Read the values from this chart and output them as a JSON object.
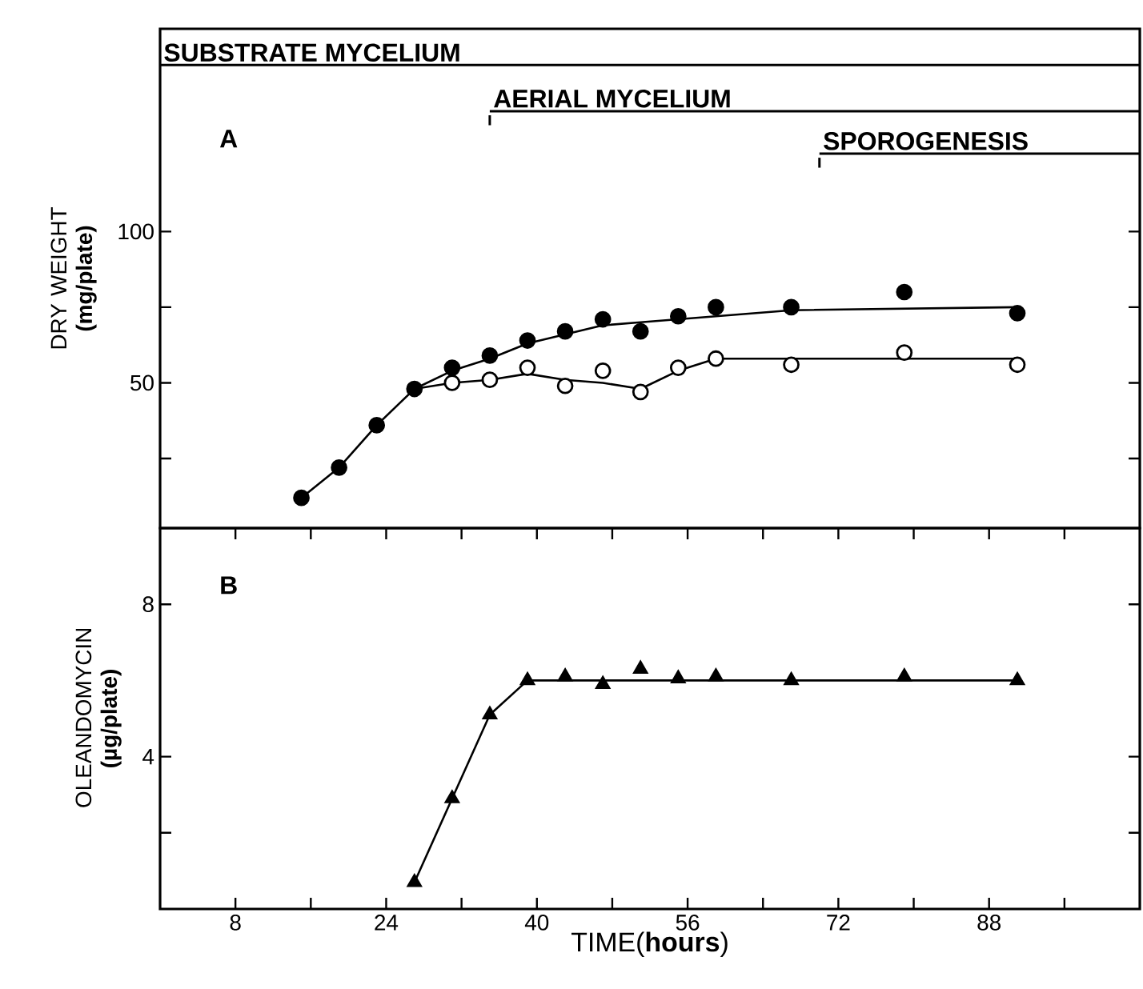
{
  "chart_data": [
    {
      "type": "scatter",
      "ylabel": "DRY WEIGHT **(mg/plate)**",
      "xlim": [
        0,
        104
      ],
      "ylim": [
        2,
        167
      ],
      "yticks": [
        {
          "value": 25,
          "label": null
        },
        50,
        {
          "value": 75,
          "label": null
        },
        100
      ],
      "tick_labels": "y",
      "grid": false,
      "annotations": [
        "AERIAL MYCELIUM",
        "SPOROGENESIS",
        "A"
      ],
      "ref_lines": [
        {
          "axis": "y",
          "value": 155,
          "label": "SUBSTRATE MYCELIUM",
          "color": "#000000",
          "line_style": "solid"
        }
      ],
      "series": [
        {
          "marker": "circle",
          "color": "#000000",
          "x": [
            15,
            19,
            23,
            27,
            31,
            35,
            39,
            43,
            47,
            51,
            55,
            59,
            67,
            79,
            91
          ],
          "values": [
            12,
            22,
            36,
            48,
            55,
            59,
            64,
            67,
            71,
            67,
            72,
            75,
            75,
            80,
            73
          ]
        },
        {
          "marker": "circle",
          "color": "#ffffff",
          "x": [
            31,
            35,
            39,
            43,
            47,
            51,
            55,
            59,
            67,
            79,
            91
          ],
          "values": [
            50,
            51,
            55,
            49,
            54,
            47,
            55,
            58,
            56,
            60,
            56
          ]
        },
        {
          "type": "line",
          "marker": "none",
          "line_style": "solid",
          "color": "#000000",
          "x": [
            15,
            19,
            23,
            27,
            31,
            35,
            39,
            43,
            47,
            51,
            59,
            67,
            91
          ],
          "values": [
            12,
            22,
            36,
            48,
            54,
            58,
            63,
            66,
            69,
            70,
            72,
            74,
            75
          ]
        },
        {
          "type": "line",
          "marker": "none",
          "line_style": "solid",
          "color": "#000000",
          "x": [
            27,
            31,
            35,
            39,
            43,
            47,
            51,
            55,
            59,
            91
          ],
          "values": [
            48,
            50,
            51,
            53,
            51,
            50,
            48,
            54,
            58,
            58
          ]
        }
      ]
    },
    {
      "type": "scatter",
      "xlabel": "TIME(**hours**)",
      "ylabel": "OLEANDOMYCIN **(µg/plate)**",
      "xlim": [
        0,
        104
      ],
      "ylim": [
        0,
        10
      ],
      "xticks": [
        8,
        {
          "value": 16,
          "label": null
        },
        24,
        {
          "value": 32,
          "label": null
        },
        40,
        {
          "value": 48,
          "label": null
        },
        56,
        {
          "value": 64,
          "label": null
        },
        72,
        {
          "value": 80,
          "label": null
        },
        88,
        {
          "value": 96,
          "label": null
        }
      ],
      "yticks": [
        {
          "value": 2,
          "label": null
        },
        4,
        8
      ],
      "grid": false,
      "annotations": [
        "B"
      ],
      "series": [
        {
          "marker": "triangle",
          "color": "#000000",
          "x": [
            27,
            31,
            35,
            39,
            43,
            47,
            51,
            55,
            59,
            67,
            79,
            91
          ],
          "values": [
            0.7,
            2.9,
            5.1,
            6.0,
            6.1,
            5.9,
            6.3,
            6.05,
            6.1,
            6.0,
            6.1,
            6.0
          ]
        },
        {
          "type": "line",
          "marker": "none",
          "line_style": "solid",
          "color": "#000000",
          "x": [
            27,
            31,
            35,
            39,
            91
          ],
          "values": [
            0.7,
            2.9,
            5.1,
            6.0,
            6.0
          ]
        }
      ]
    }
  ]
}
